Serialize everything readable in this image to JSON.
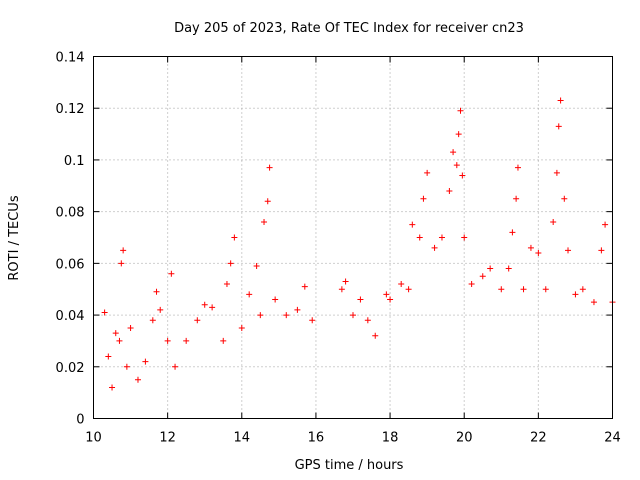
{
  "chart_data": {
    "type": "scatter",
    "title": "Day 205 of 2023, Rate Of TEC Index for receiver cn23",
    "xlabel": "GPS time / hours",
    "ylabel": "ROTI / TECUs",
    "xlim": [
      10,
      24
    ],
    "ylim": [
      0,
      0.14
    ],
    "xticks": [
      10,
      12,
      14,
      16,
      18,
      20,
      22,
      24
    ],
    "yticks": [
      0,
      0.02,
      0.04,
      0.06,
      0.08,
      0.1,
      0.12,
      0.14
    ],
    "xtick_labels": [
      "10",
      "12",
      "14",
      "16",
      "18",
      "20",
      "22",
      "24"
    ],
    "ytick_labels": [
      "0",
      "0.02",
      "0.04",
      "0.06",
      "0.08",
      "0.1",
      "0.12",
      "0.14"
    ],
    "grid": true,
    "marker": "plus",
    "marker_color": "#ff0000",
    "data_gap": [
      16.0,
      16.6
    ],
    "series": [
      {
        "name": "ROTI",
        "points": [
          [
            10.3,
            0.041
          ],
          [
            10.4,
            0.024
          ],
          [
            10.5,
            0.012
          ],
          [
            10.6,
            0.033
          ],
          [
            10.7,
            0.03
          ],
          [
            10.75,
            0.06
          ],
          [
            10.8,
            0.065
          ],
          [
            10.9,
            0.02
          ],
          [
            11.0,
            0.035
          ],
          [
            11.2,
            0.015
          ],
          [
            11.4,
            0.022
          ],
          [
            11.6,
            0.038
          ],
          [
            11.7,
            0.049
          ],
          [
            11.8,
            0.042
          ],
          [
            12.0,
            0.03
          ],
          [
            12.1,
            0.056
          ],
          [
            12.2,
            0.02
          ],
          [
            12.5,
            0.03
          ],
          [
            12.8,
            0.038
          ],
          [
            13.0,
            0.044
          ],
          [
            13.2,
            0.043
          ],
          [
            13.5,
            0.03
          ],
          [
            13.6,
            0.052
          ],
          [
            13.7,
            0.06
          ],
          [
            13.8,
            0.07
          ],
          [
            14.0,
            0.035
          ],
          [
            14.2,
            0.048
          ],
          [
            14.4,
            0.059
          ],
          [
            14.5,
            0.04
          ],
          [
            14.6,
            0.076
          ],
          [
            14.7,
            0.084
          ],
          [
            14.75,
            0.097
          ],
          [
            14.9,
            0.046
          ],
          [
            15.2,
            0.04
          ],
          [
            15.5,
            0.042
          ],
          [
            15.7,
            0.051
          ],
          [
            15.9,
            0.038
          ],
          [
            16.7,
            0.05
          ],
          [
            16.8,
            0.053
          ],
          [
            17.0,
            0.04
          ],
          [
            17.2,
            0.046
          ],
          [
            17.4,
            0.038
          ],
          [
            17.6,
            0.032
          ],
          [
            17.9,
            0.048
          ],
          [
            18.0,
            0.046
          ],
          [
            18.3,
            0.052
          ],
          [
            18.5,
            0.05
          ],
          [
            18.6,
            0.075
          ],
          [
            18.8,
            0.07
          ],
          [
            18.9,
            0.085
          ],
          [
            19.0,
            0.095
          ],
          [
            19.2,
            0.066
          ],
          [
            19.4,
            0.07
          ],
          [
            19.6,
            0.088
          ],
          [
            19.7,
            0.103
          ],
          [
            19.8,
            0.098
          ],
          [
            19.85,
            0.11
          ],
          [
            19.9,
            0.119
          ],
          [
            19.95,
            0.094
          ],
          [
            20.0,
            0.07
          ],
          [
            20.2,
            0.052
          ],
          [
            20.5,
            0.055
          ],
          [
            20.7,
            0.058
          ],
          [
            21.0,
            0.05
          ],
          [
            21.2,
            0.058
          ],
          [
            21.3,
            0.072
          ],
          [
            21.4,
            0.085
          ],
          [
            21.45,
            0.097
          ],
          [
            21.6,
            0.05
          ],
          [
            21.8,
            0.066
          ],
          [
            22.0,
            0.064
          ],
          [
            22.2,
            0.05
          ],
          [
            22.4,
            0.076
          ],
          [
            22.5,
            0.095
          ],
          [
            22.55,
            0.113
          ],
          [
            22.6,
            0.123
          ],
          [
            22.7,
            0.085
          ],
          [
            22.8,
            0.065
          ],
          [
            23.0,
            0.048
          ],
          [
            23.2,
            0.05
          ],
          [
            23.5,
            0.045
          ],
          [
            23.7,
            0.065
          ],
          [
            23.8,
            0.075
          ],
          [
            24.0,
            0.045
          ]
        ]
      }
    ]
  }
}
